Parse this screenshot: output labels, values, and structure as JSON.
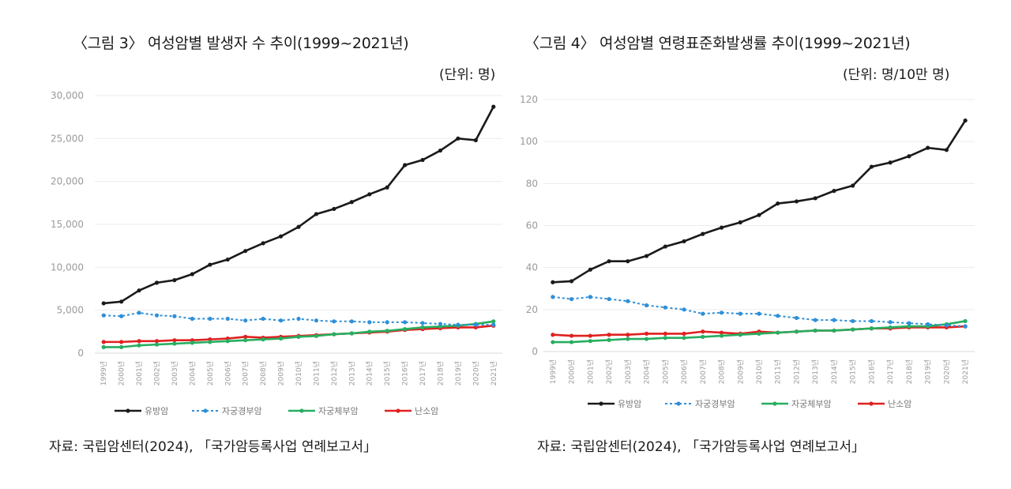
{
  "chart_data": [
    {
      "type": "line",
      "title": "〈그림 3〉 여성암별 발생자 수 추이(1999~2021년)",
      "unit": "(단위: 명)",
      "source": "자료: 국립암센터(2024), 「국가암등록사업 연례보고서」",
      "ylim": [
        0,
        30000
      ],
      "yticks": [
        "0",
        "5,000",
        "10,000",
        "15,000",
        "20,000",
        "25,000",
        "30,000"
      ],
      "ytick_values": [
        0,
        5000,
        10000,
        15000,
        20000,
        25000,
        30000
      ],
      "grid": true,
      "legend_position": "bottom",
      "categories": [
        "1999년",
        "2000년",
        "2001년",
        "2002년",
        "2003년",
        "2004년",
        "2005년",
        "2006년",
        "2007년",
        "2008년",
        "2009년",
        "2010년",
        "2011년",
        "2012년",
        "2013년",
        "2014년",
        "2015년",
        "2016년",
        "2017년",
        "2018년",
        "2019년",
        "2020년",
        "2021년"
      ],
      "series": [
        {
          "name": "유방암",
          "color": "#1a1a1a",
          "dash": "solid",
          "values": [
            5800,
            6000,
            7300,
            8200,
            8500,
            9200,
            10300,
            10900,
            11900,
            12800,
            13600,
            14700,
            16200,
            16800,
            17600,
            18500,
            19300,
            21900,
            22500,
            23600,
            25000,
            24800,
            28700
          ]
        },
        {
          "name": "자궁경부암",
          "color": "#2f8fd8",
          "dash": "dotted",
          "values": [
            4400,
            4300,
            4700,
            4400,
            4300,
            4000,
            4000,
            4000,
            3800,
            4000,
            3800,
            4000,
            3800,
            3700,
            3700,
            3600,
            3600,
            3600,
            3500,
            3400,
            3300,
            3300,
            3300
          ]
        },
        {
          "name": "자궁체부암",
          "color": "#27ae60",
          "dash": "solid",
          "values": [
            700,
            700,
            900,
            1000,
            1100,
            1200,
            1300,
            1400,
            1500,
            1600,
            1700,
            1900,
            2000,
            2200,
            2300,
            2500,
            2600,
            2800,
            3000,
            3100,
            3200,
            3400,
            3700
          ]
        },
        {
          "name": "난소암",
          "color": "#e02020",
          "dash": "solid",
          "values": [
            1300,
            1300,
            1400,
            1400,
            1500,
            1500,
            1600,
            1700,
            1900,
            1800,
            1900,
            2000,
            2100,
            2200,
            2300,
            2400,
            2500,
            2700,
            2800,
            2900,
            3000,
            3000,
            3200
          ]
        }
      ]
    },
    {
      "type": "line",
      "title": "〈그림 4〉 여성암별 연령표준화발생률 추이(1999~2021년)",
      "unit": "(단위: 명/10만 명)",
      "source": "자료: 국립암센터(2024), 「국가암등록사업 연례보고서」",
      "ylim": [
        0,
        120
      ],
      "yticks": [
        "0",
        "20",
        "40",
        "60",
        "80",
        "100",
        "120"
      ],
      "ytick_values": [
        0,
        20,
        40,
        60,
        80,
        100,
        120
      ],
      "grid": true,
      "legend_position": "bottom",
      "categories": [
        "1999년",
        "2000년",
        "2001년",
        "2002년",
        "2003년",
        "2004년",
        "2005년",
        "2006년",
        "2007년",
        "2008년",
        "2009년",
        "2010년",
        "2011년",
        "2012년",
        "2013년",
        "2014년",
        "2015년",
        "2016년",
        "2017년",
        "2018년",
        "2019년",
        "2020년",
        "2021년"
      ],
      "series": [
        {
          "name": "유방암",
          "color": "#1a1a1a",
          "dash": "solid",
          "values": [
            33,
            33.5,
            39,
            43,
            43,
            45.5,
            50,
            52.5,
            56,
            59,
            61.5,
            65,
            70.5,
            71.5,
            73,
            76.5,
            79,
            88,
            90,
            93,
            97,
            96,
            110
          ]
        },
        {
          "name": "자궁경부암",
          "color": "#2f8fd8",
          "dash": "dotted",
          "values": [
            26,
            25,
            26,
            25,
            24,
            22,
            21,
            20,
            18,
            18.5,
            18,
            18,
            17,
            16,
            15,
            15,
            14.5,
            14.5,
            14,
            13.5,
            13,
            12.5,
            12
          ]
        },
        {
          "name": "자궁체부암",
          "color": "#27ae60",
          "dash": "solid",
          "values": [
            4.5,
            4.5,
            5,
            5.5,
            6,
            6,
            6.5,
            6.5,
            7,
            7.5,
            8,
            8.5,
            9,
            9.5,
            10,
            10,
            10.5,
            11,
            11.5,
            12,
            12,
            13,
            14.5
          ]
        },
        {
          "name": "난소암",
          "color": "#e02020",
          "dash": "solid",
          "values": [
            8,
            7.5,
            7.5,
            8,
            8,
            8.5,
            8.5,
            8.5,
            9.5,
            9,
            8.5,
            9.5,
            9,
            9.5,
            10,
            10,
            10.5,
            11,
            11,
            11.5,
            11.5,
            11.5,
            12
          ]
        }
      ]
    }
  ]
}
